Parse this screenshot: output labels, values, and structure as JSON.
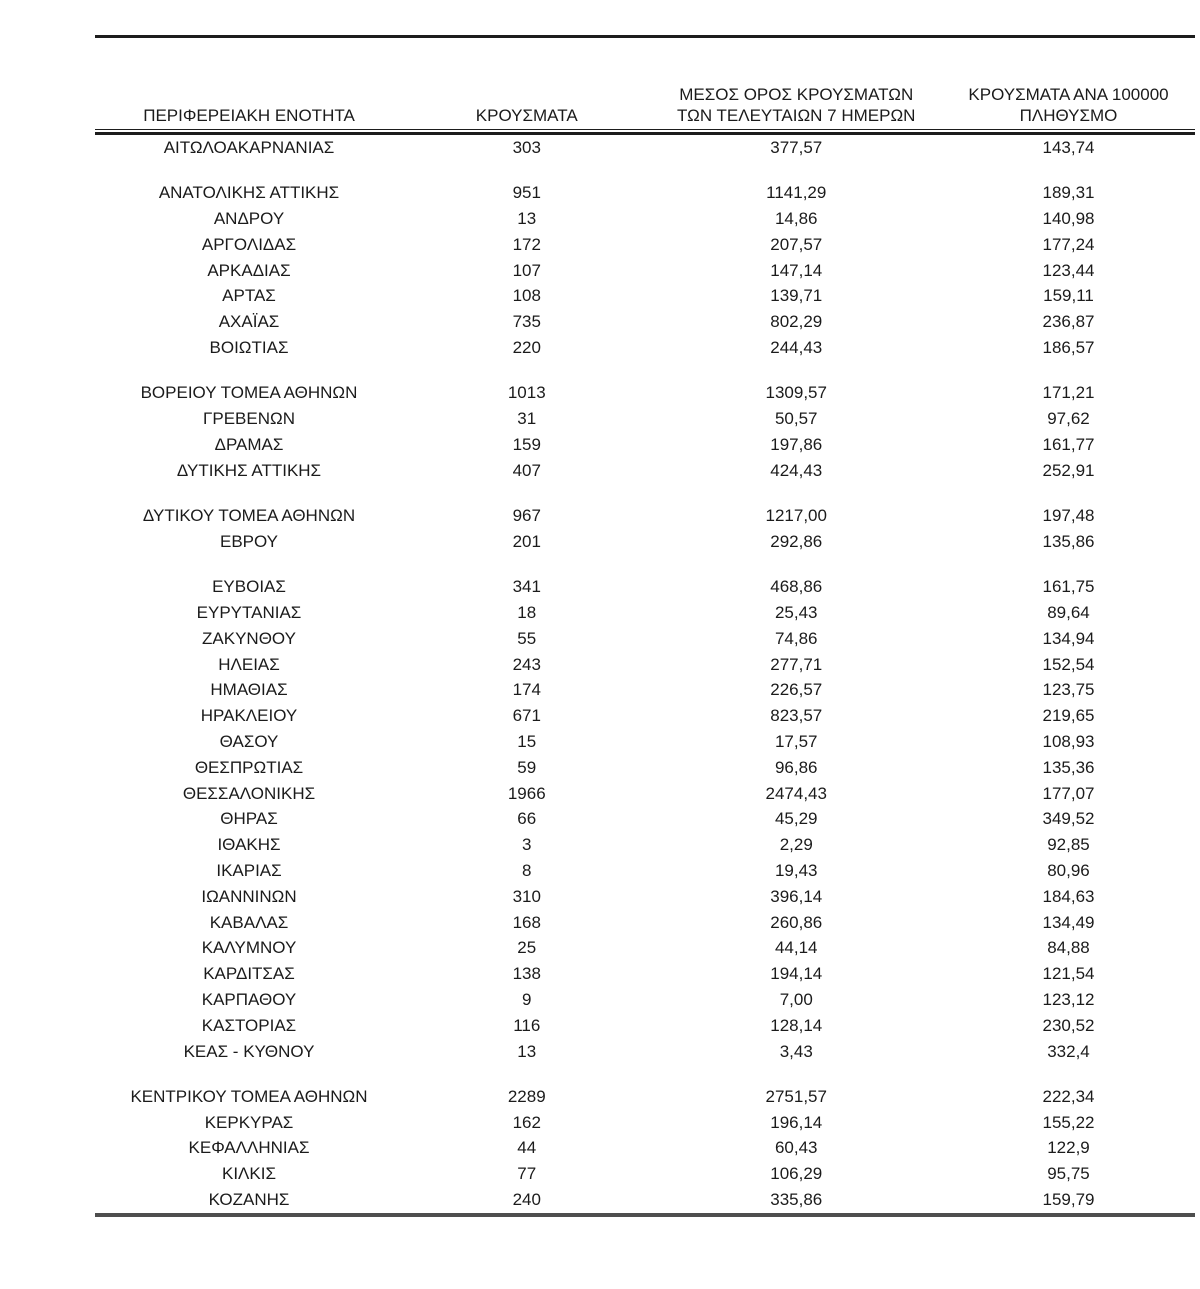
{
  "colors": {
    "text": "#1b1b1b",
    "rule_dark": "#1d1d1d",
    "rule_bottom": "#4e4e4e"
  },
  "table": {
    "columns": [
      {
        "id": "region",
        "label": "ΠΕΡΙΦΕΡΕΙΑΚΗ ΕΝΟΤΗΤΑ"
      },
      {
        "id": "cases",
        "label": "ΚΡΟΥΣΜΑΤΑ"
      },
      {
        "id": "avg7",
        "label": "ΜΕΣΟΣ ΟΡΟΣ ΚΡΟΥΣΜΑΤΩΝ ΤΩΝ ΤΕΛΕΥΤΑΙΩΝ 7 ΗΜΕΡΩΝ"
      },
      {
        "id": "per100k",
        "label": "ΚΡΟΥΣΜΑΤΑ ΑΝΑ 100000 ΠΛΗΘΥΣΜΟ"
      }
    ],
    "groups": [
      {
        "rows": [
          [
            "ΑΙΤΩΛΟΑΚΑΡΝΑΝΙΑΣ",
            "303",
            "377,57",
            "143,74"
          ]
        ]
      },
      {
        "rows": [
          [
            "ΑΝΑΤΟΛΙΚΗΣ ΑΤΤΙΚΗΣ",
            "951",
            "1141,29",
            "189,31"
          ],
          [
            "ΑΝΔΡΟΥ",
            "13",
            "14,86",
            "140,98"
          ],
          [
            "ΑΡΓΟΛΙΔΑΣ",
            "172",
            "207,57",
            "177,24"
          ],
          [
            "ΑΡΚΑΔΙΑΣ",
            "107",
            "147,14",
            "123,44"
          ],
          [
            "ΑΡΤΑΣ",
            "108",
            "139,71",
            "159,11"
          ],
          [
            "ΑΧΑΪΑΣ",
            "735",
            "802,29",
            "236,87"
          ],
          [
            "ΒΟΙΩΤΙΑΣ",
            "220",
            "244,43",
            "186,57"
          ]
        ]
      },
      {
        "rows": [
          [
            "ΒΟΡΕΙΟΥ ΤΟΜΕΑ ΑΘΗΝΩΝ",
            "1013",
            "1309,57",
            "171,21"
          ],
          [
            "ΓΡΕΒΕΝΩΝ",
            "31",
            "50,57",
            "97,62"
          ],
          [
            "ΔΡΑΜΑΣ",
            "159",
            "197,86",
            "161,77"
          ],
          [
            "ΔΥΤΙΚΗΣ ΑΤΤΙΚΗΣ",
            "407",
            "424,43",
            "252,91"
          ]
        ]
      },
      {
        "rows": [
          [
            "ΔΥΤΙΚΟΥ ΤΟΜΕΑ ΑΘΗΝΩΝ",
            "967",
            "1217,00",
            "197,48"
          ],
          [
            "ΕΒΡΟΥ",
            "201",
            "292,86",
            "135,86"
          ]
        ]
      },
      {
        "rows": [
          [
            "ΕΥΒΟΙΑΣ",
            "341",
            "468,86",
            "161,75"
          ],
          [
            "ΕΥΡΥΤΑΝΙΑΣ",
            "18",
            "25,43",
            "89,64"
          ],
          [
            "ΖΑΚΥΝΘΟΥ",
            "55",
            "74,86",
            "134,94"
          ],
          [
            "ΗΛΕΙΑΣ",
            "243",
            "277,71",
            "152,54"
          ],
          [
            "ΗΜΑΘΙΑΣ",
            "174",
            "226,57",
            "123,75"
          ],
          [
            "ΗΡΑΚΛΕΙΟΥ",
            "671",
            "823,57",
            "219,65"
          ],
          [
            "ΘΑΣΟΥ",
            "15",
            "17,57",
            "108,93"
          ],
          [
            "ΘΕΣΠΡΩΤΙΑΣ",
            "59",
            "96,86",
            "135,36"
          ],
          [
            "ΘΕΣΣΑΛΟΝΙΚΗΣ",
            "1966",
            "2474,43",
            "177,07"
          ],
          [
            "ΘΗΡΑΣ",
            "66",
            "45,29",
            "349,52"
          ],
          [
            "ΙΘΑΚΗΣ",
            "3",
            "2,29",
            "92,85"
          ],
          [
            "ΙΚΑΡΙΑΣ",
            "8",
            "19,43",
            "80,96"
          ],
          [
            "ΙΩΑΝΝΙΝΩΝ",
            "310",
            "396,14",
            "184,63"
          ],
          [
            "ΚΑΒΑΛΑΣ",
            "168",
            "260,86",
            "134,49"
          ],
          [
            "ΚΑΛΥΜΝΟΥ",
            "25",
            "44,14",
            "84,88"
          ],
          [
            "ΚΑΡΔΙΤΣΑΣ",
            "138",
            "194,14",
            "121,54"
          ],
          [
            "ΚΑΡΠΑΘΟΥ",
            "9",
            "7,00",
            "123,12"
          ],
          [
            "ΚΑΣΤΟΡΙΑΣ",
            "116",
            "128,14",
            "230,52"
          ],
          [
            "ΚΕΑΣ - ΚΥΘΝΟΥ",
            "13",
            "3,43",
            "332,4"
          ]
        ]
      },
      {
        "rows": [
          [
            "ΚΕΝΤΡΙΚΟΥ ΤΟΜΕΑ ΑΘΗΝΩΝ",
            "2289",
            "2751,57",
            "222,34"
          ],
          [
            "ΚΕΡΚΥΡΑΣ",
            "162",
            "196,14",
            "155,22"
          ],
          [
            "ΚΕΦΑΛΛΗΝΙΑΣ",
            "44",
            "60,43",
            "122,9"
          ],
          [
            "ΚΙΛΚΙΣ",
            "77",
            "106,29",
            "95,75"
          ],
          [
            "ΚΟΖΑΝΗΣ",
            "240",
            "335,86",
            "159,79"
          ]
        ]
      }
    ]
  }
}
